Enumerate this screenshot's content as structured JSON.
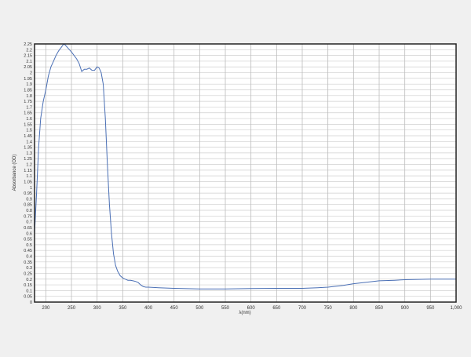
{
  "chart_data": {
    "type": "line",
    "title": "",
    "xlabel": "λ(nm)",
    "ylabel": "Absorbance (OD)",
    "xlim": [
      178,
      1000
    ],
    "ylim": [
      0,
      2.25
    ],
    "grid": true,
    "x_ticks": [
      200,
      250,
      300,
      350,
      400,
      450,
      500,
      550,
      600,
      650,
      700,
      750,
      800,
      850,
      900,
      950,
      1000
    ],
    "x_tick_labels": [
      "200",
      "250",
      "300",
      "350",
      "400",
      "450",
      "500",
      "550",
      "600",
      "650",
      "700",
      "750",
      "800",
      "850",
      "900",
      "950",
      "1,000"
    ],
    "y_tick_step": 0.05,
    "line_color": "#4a6fb5",
    "series": [
      {
        "x": [
          178,
          182,
          186,
          190,
          195,
          200,
          205,
          210,
          215,
          220,
          225,
          230,
          235,
          238,
          242,
          246,
          250,
          255,
          260,
          265,
          270,
          275,
          280,
          285,
          290,
          295,
          300,
          304,
          308,
          312,
          316,
          320,
          324,
          328,
          332,
          336,
          340,
          345,
          350,
          355,
          360,
          365,
          370,
          375,
          380,
          385,
          390,
          395,
          400,
          420,
          450,
          500,
          550,
          600,
          650,
          700,
          730,
          750,
          780,
          800,
          830,
          850,
          880,
          900,
          950,
          1000
        ],
        "y": [
          0.6,
          0.95,
          1.35,
          1.6,
          1.75,
          1.85,
          1.97,
          2.05,
          2.1,
          2.15,
          2.19,
          2.22,
          2.25,
          2.24,
          2.22,
          2.2,
          2.18,
          2.15,
          2.12,
          2.08,
          2.01,
          2.03,
          2.03,
          2.04,
          2.02,
          2.02,
          2.05,
          2.04,
          2.0,
          1.9,
          1.6,
          1.2,
          0.85,
          0.6,
          0.42,
          0.32,
          0.27,
          0.23,
          0.21,
          0.2,
          0.19,
          0.19,
          0.185,
          0.18,
          0.17,
          0.15,
          0.135,
          0.13,
          0.13,
          0.125,
          0.12,
          0.115,
          0.115,
          0.118,
          0.12,
          0.12,
          0.125,
          0.13,
          0.145,
          0.16,
          0.175,
          0.185,
          0.19,
          0.195,
          0.2,
          0.2
        ]
      }
    ]
  }
}
